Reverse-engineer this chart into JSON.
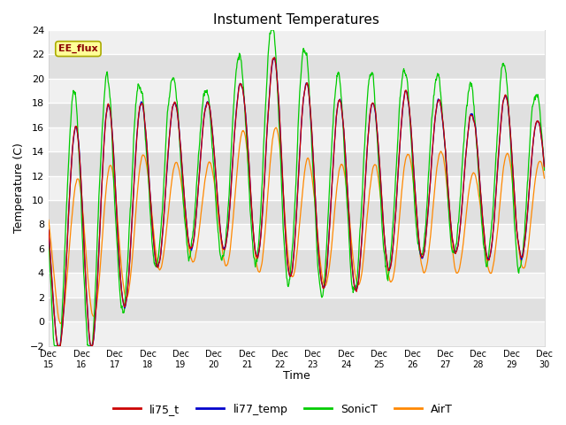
{
  "title": "Instument Temperatures",
  "xlabel": "Time",
  "ylabel": "Temperature (C)",
  "ylim": [
    -2,
    24
  ],
  "yticks": [
    -2,
    0,
    2,
    4,
    6,
    8,
    10,
    12,
    14,
    16,
    18,
    20,
    22,
    24
  ],
  "xtick_labels": [
    "Dec 15",
    "Dec 16",
    "Dec 17",
    "Dec 18",
    "Dec 19",
    "Dec 20",
    "Dec 21",
    "Dec 22",
    "Dec 23",
    "Dec 24",
    "Dec 25",
    "Dec 26",
    "Dec 27",
    "Dec 28",
    "Dec 29",
    "Dec 30"
  ],
  "colors": {
    "li75_t": "#cc0000",
    "li77_temp": "#0000cc",
    "SonicT": "#00cc00",
    "AirT": "#ff8800"
  },
  "annotation_text": "EE_flux",
  "annotation_bg": "#ffff99",
  "annotation_border": "#aaaa00",
  "plot_bg_light": "#f0f0f0",
  "plot_bg_dark": "#e0e0e0",
  "fig_bg": "#ffffff",
  "grid_color": "#ffffff",
  "n_points": 1440
}
